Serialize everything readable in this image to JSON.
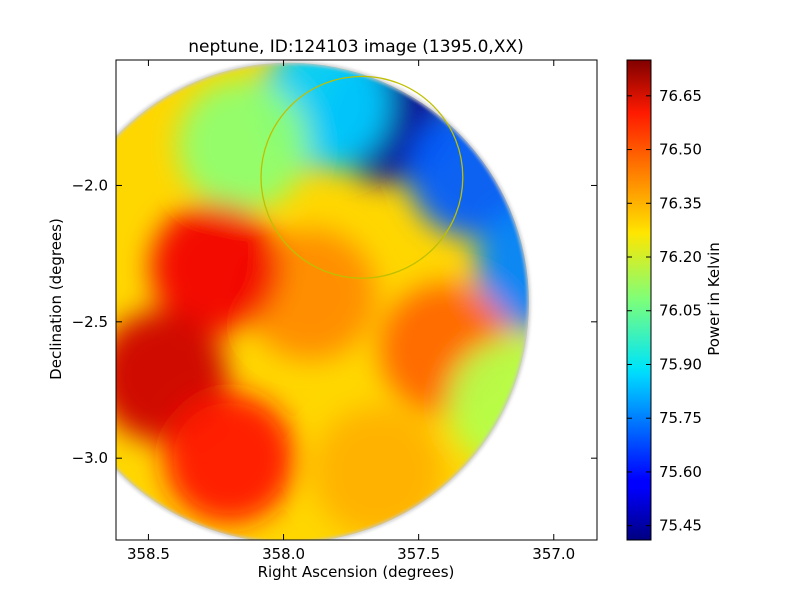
{
  "chart_data": {
    "type": "heatmap",
    "title": "neptune, ID:124103 image (1395.0,XX)",
    "xlabel": "Right Ascension (degrees)",
    "ylabel": "Declination (degrees)",
    "xlim": [
      358.62,
      356.84
    ],
    "ylim": [
      -3.3,
      -1.54
    ],
    "x_ticks": [
      {
        "value": 358.5,
        "label": "358.5"
      },
      {
        "value": 358.0,
        "label": "358.0"
      },
      {
        "value": 357.5,
        "label": "357.5"
      },
      {
        "value": 357.0,
        "label": "357.0"
      }
    ],
    "y_ticks": [
      {
        "value": -2.0,
        "label": "−2.0"
      },
      {
        "value": -2.5,
        "label": "−2.5"
      },
      {
        "value": -3.0,
        "label": "−3.0"
      }
    ],
    "colorbar": {
      "label": "Power in Kelvin",
      "vmin": 75.41,
      "vmax": 76.75,
      "colormap": "jet",
      "ticks": [
        {
          "value": 75.45,
          "label": "75.45"
        },
        {
          "value": 75.6,
          "label": "75.60"
        },
        {
          "value": 75.75,
          "label": "75.75"
        },
        {
          "value": 75.9,
          "label": "75.90"
        },
        {
          "value": 76.05,
          "label": "76.05"
        },
        {
          "value": 76.2,
          "label": "76.20"
        },
        {
          "value": 76.35,
          "label": "76.35"
        },
        {
          "value": 76.5,
          "label": "76.50"
        },
        {
          "value": 76.65,
          "label": "76.65"
        }
      ]
    },
    "field": {
      "center": {
        "ra": 357.98,
        "dec": -2.43
      },
      "radius_deg": 0.88
    },
    "annotation": {
      "shape": "circle",
      "color": "#bfbf00",
      "center": {
        "ra": 357.71,
        "dec": -1.97
      },
      "radius_deg": 0.37
    },
    "field_samples": [
      {
        "ra": 357.62,
        "dec": -1.75,
        "value": 75.45
      },
      {
        "ra": 357.3,
        "dec": -1.95,
        "value": 75.7
      },
      {
        "ra": 357.05,
        "dec": -2.3,
        "value": 75.75
      },
      {
        "ra": 357.85,
        "dec": -1.7,
        "value": 75.85
      },
      {
        "ra": 358.15,
        "dec": -1.85,
        "value": 76.1
      },
      {
        "ra": 357.9,
        "dec": -2.4,
        "value": 76.4
      },
      {
        "ra": 358.25,
        "dec": -2.3,
        "value": 76.6
      },
      {
        "ra": 358.45,
        "dec": -2.7,
        "value": 76.65
      },
      {
        "ra": 358.2,
        "dec": -3.0,
        "value": 76.55
      },
      {
        "ra": 357.65,
        "dec": -3.05,
        "value": 76.35
      },
      {
        "ra": 357.4,
        "dec": -2.6,
        "value": 76.45
      },
      {
        "ra": 357.15,
        "dec": -2.8,
        "value": 76.15
      }
    ]
  }
}
